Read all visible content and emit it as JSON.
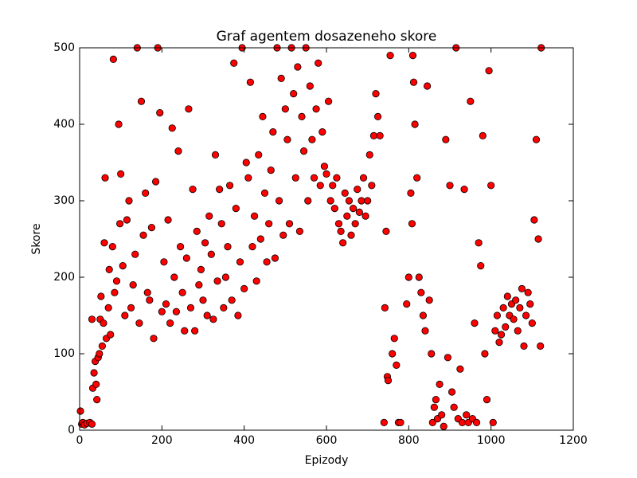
{
  "chart_data": {
    "type": "scatter",
    "title": "Graf agentem dosazeneho skore",
    "x_label": "Epizody",
    "y_label": "Skore",
    "color": "#ff0000",
    "x": [
      2,
      5,
      8,
      12,
      18,
      25,
      30,
      30,
      32,
      35,
      38,
      40,
      42,
      45,
      48,
      50,
      52,
      55,
      58,
      60,
      62,
      65,
      70,
      72,
      75,
      80,
      82,
      85,
      90,
      95,
      98,
      100,
      105,
      110,
      115,
      120,
      125,
      130,
      135,
      140,
      145,
      150,
      155,
      160,
      165,
      170,
      175,
      180,
      185,
      190,
      195,
      200,
      205,
      210,
      215,
      220,
      225,
      230,
      235,
      240,
      245,
      250,
      255,
      260,
      265,
      270,
      275,
      280,
      285,
      290,
      295,
      300,
      305,
      310,
      315,
      320,
      325,
      330,
      335,
      340,
      345,
      350,
      355,
      360,
      365,
      370,
      375,
      380,
      385,
      390,
      395,
      400,
      405,
      410,
      415,
      420,
      425,
      430,
      435,
      440,
      445,
      450,
      455,
      460,
      465,
      470,
      475,
      480,
      485,
      490,
      495,
      500,
      505,
      510,
      515,
      520,
      525,
      530,
      535,
      540,
      545,
      550,
      555,
      560,
      565,
      570,
      575,
      580,
      585,
      590,
      595,
      600,
      605,
      610,
      615,
      620,
      625,
      630,
      635,
      640,
      645,
      650,
      655,
      660,
      665,
      670,
      675,
      680,
      685,
      690,
      695,
      700,
      705,
      710,
      715,
      720,
      725,
      730,
      740,
      742,
      745,
      748,
      750,
      755,
      760,
      765,
      770,
      775,
      780,
      795,
      800,
      805,
      808,
      810,
      812,
      815,
      820,
      825,
      830,
      835,
      840,
      845,
      850,
      855,
      858,
      862,
      866,
      870,
      875,
      880,
      885,
      890,
      895,
      900,
      905,
      910,
      915,
      920,
      925,
      930,
      935,
      940,
      945,
      950,
      955,
      960,
      965,
      970,
      975,
      980,
      985,
      990,
      995,
      1000,
      1005,
      1010,
      1015,
      1020,
      1025,
      1030,
      1035,
      1040,
      1045,
      1050,
      1055,
      1060,
      1065,
      1070,
      1075,
      1080,
      1085,
      1090,
      1095,
      1100,
      1105,
      1110,
      1115,
      1120,
      1122
    ],
    "values": [
      25,
      8,
      10,
      7,
      9,
      10,
      8,
      145,
      55,
      75,
      90,
      60,
      40,
      95,
      100,
      145,
      175,
      110,
      140,
      245,
      330,
      120,
      160,
      210,
      125,
      240,
      485,
      180,
      195,
      400,
      270,
      335,
      215,
      150,
      275,
      300,
      160,
      190,
      230,
      500,
      140,
      430,
      255,
      310,
      180,
      170,
      265,
      120,
      325,
      500,
      415,
      155,
      220,
      165,
      275,
      140,
      395,
      200,
      155,
      365,
      240,
      180,
      130,
      225,
      420,
      160,
      315,
      130,
      260,
      190,
      210,
      170,
      245,
      150,
      280,
      230,
      145,
      360,
      195,
      315,
      270,
      160,
      200,
      240,
      320,
      170,
      480,
      290,
      150,
      220,
      500,
      185,
      350,
      330,
      455,
      240,
      280,
      195,
      360,
      250,
      410,
      310,
      220,
      270,
      340,
      390,
      225,
      500,
      300,
      460,
      255,
      420,
      380,
      270,
      500,
      440,
      330,
      475,
      260,
      410,
      365,
      500,
      300,
      450,
      380,
      330,
      420,
      480,
      320,
      390,
      345,
      335,
      430,
      300,
      320,
      290,
      330,
      270,
      260,
      245,
      310,
      280,
      300,
      255,
      290,
      270,
      315,
      285,
      300,
      330,
      280,
      300,
      360,
      320,
      385,
      440,
      410,
      385,
      10,
      160,
      260,
      70,
      65,
      490,
      100,
      120,
      85,
      10,
      10,
      165,
      200,
      310,
      270,
      490,
      455,
      400,
      330,
      200,
      180,
      150,
      130,
      450,
      170,
      100,
      10,
      30,
      40,
      15,
      60,
      20,
      5,
      380,
      95,
      320,
      50,
      30,
      500,
      15,
      80,
      10,
      315,
      20,
      10,
      430,
      15,
      140,
      10,
      245,
      215,
      385,
      100,
      40,
      470,
      320,
      10,
      130,
      150,
      115,
      125,
      160,
      135,
      175,
      150,
      165,
      145,
      170,
      130,
      160,
      185,
      110,
      150,
      180,
      165,
      140,
      275,
      380,
      250,
      110,
      500
    ],
    "xlim": [
      0,
      1200
    ],
    "xticks": [
      0,
      200,
      400,
      600,
      800,
      1000,
      1200
    ],
    "ylim": [
      0,
      500
    ],
    "yticks": [
      0,
      100,
      200,
      300,
      400,
      500
    ]
  }
}
